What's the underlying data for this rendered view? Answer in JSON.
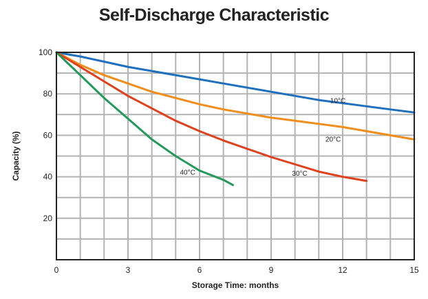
{
  "chart_data": {
    "type": "line",
    "title": "Self-Discharge Characteristic",
    "xlabel": "Storage Time: months",
    "ylabel": "Capacity (%)",
    "xlim": [
      0,
      15
    ],
    "ylim": [
      0,
      100
    ],
    "x_ticks": [
      0,
      3,
      6,
      9,
      12,
      15
    ],
    "y_ticks": [
      20,
      40,
      60,
      80,
      100
    ],
    "grid": true,
    "series": [
      {
        "name": "10°C",
        "color": "#1f6fbf",
        "x": [
          0,
          1,
          2,
          3,
          4,
          5,
          6,
          7,
          8,
          9,
          10,
          11,
          12,
          13,
          14,
          15
        ],
        "y": [
          100,
          98,
          95.5,
          93,
          91,
          89,
          87,
          85,
          83,
          81,
          79,
          77,
          75.5,
          74,
          72.5,
          71
        ]
      },
      {
        "name": "20°C",
        "color": "#f28c1a",
        "x": [
          0,
          1,
          2,
          3,
          4,
          5,
          6,
          7,
          8,
          9,
          10,
          11,
          12,
          13,
          14,
          15
        ],
        "y": [
          100,
          94,
          89,
          85,
          81,
          78,
          75,
          72.5,
          70.5,
          68.5,
          67,
          65.5,
          64,
          62,
          60,
          58
        ]
      },
      {
        "name": "30°C",
        "color": "#e0401c",
        "x": [
          0,
          1,
          2,
          3,
          4,
          5,
          6,
          7,
          8,
          9,
          10,
          11,
          12,
          13
        ],
        "y": [
          100,
          93,
          86,
          79,
          73,
          67,
          62,
          57.5,
          53.5,
          49.5,
          46,
          42.5,
          40,
          38
        ]
      },
      {
        "name": "40°C",
        "color": "#22995a",
        "x": [
          0,
          1,
          2,
          3,
          4,
          5,
          6,
          7,
          7.4
        ],
        "y": [
          100,
          89,
          78,
          68,
          58,
          50,
          43,
          38.5,
          36
        ]
      }
    ],
    "series_labels": [
      {
        "text": "10°C",
        "x": 11.8,
        "y": 75.5
      },
      {
        "text": "20°C",
        "x": 11.6,
        "y": 57
      },
      {
        "text": "30°C",
        "x": 10.2,
        "y": 40.5
      },
      {
        "text": "40°C",
        "x": 5.5,
        "y": 41
      }
    ]
  }
}
